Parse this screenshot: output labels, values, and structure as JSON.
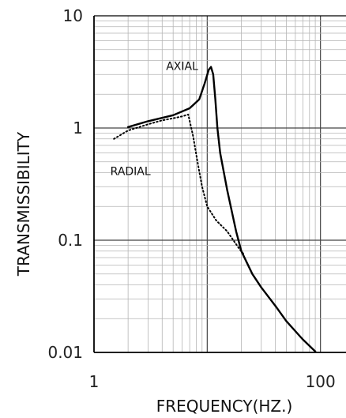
{
  "chart_data": {
    "type": "line",
    "title": "",
    "xlabel": "FREQUENCY(HZ.)",
    "ylabel": "TRANSMISSIBILITY",
    "x_scale": "log",
    "y_scale": "log",
    "xlim": [
      1,
      1000
    ],
    "ylim": [
      0.01,
      10
    ],
    "x_ticks": [
      1,
      100
    ],
    "x_tick_labels": [
      "1",
      "100"
    ],
    "y_ticks": [
      0.01,
      0.1,
      1,
      10
    ],
    "y_tick_labels": [
      "0.01",
      "0.1",
      "1",
      "10"
    ],
    "grid": true,
    "legend": "none",
    "series": [
      {
        "name": "AXIAL",
        "style": "solid",
        "color": "#000000",
        "x": [
          2,
          3,
          5,
          7,
          8.5,
          9.5,
          10.3,
          10.8,
          11.3,
          11.8,
          12.3,
          13,
          15,
          18,
          20,
          25,
          30,
          40,
          50,
          70,
          90
        ],
        "y": [
          1.02,
          1.15,
          1.3,
          1.5,
          1.8,
          2.5,
          3.3,
          3.5,
          3.0,
          1.8,
          1.0,
          0.6,
          0.28,
          0.12,
          0.08,
          0.05,
          0.038,
          0.026,
          0.019,
          0.013,
          0.0102
        ]
      },
      {
        "name": "RADIAL",
        "style": "dotted",
        "color": "#000000",
        "x": [
          1.5,
          2,
          3,
          4,
          5,
          6,
          6.8,
          7.5,
          8.2,
          9,
          10,
          12,
          15,
          17,
          19,
          21
        ],
        "y": [
          0.8,
          0.95,
          1.08,
          1.17,
          1.22,
          1.27,
          1.32,
          0.85,
          0.5,
          0.3,
          0.2,
          0.15,
          0.12,
          0.1,
          0.085,
          0.075
        ]
      }
    ],
    "annotations": [
      {
        "text": "AXIAL",
        "x": 6,
        "y": 3.3
      },
      {
        "text": "RADIAL",
        "x": 2.1,
        "y": 0.38
      }
    ]
  }
}
